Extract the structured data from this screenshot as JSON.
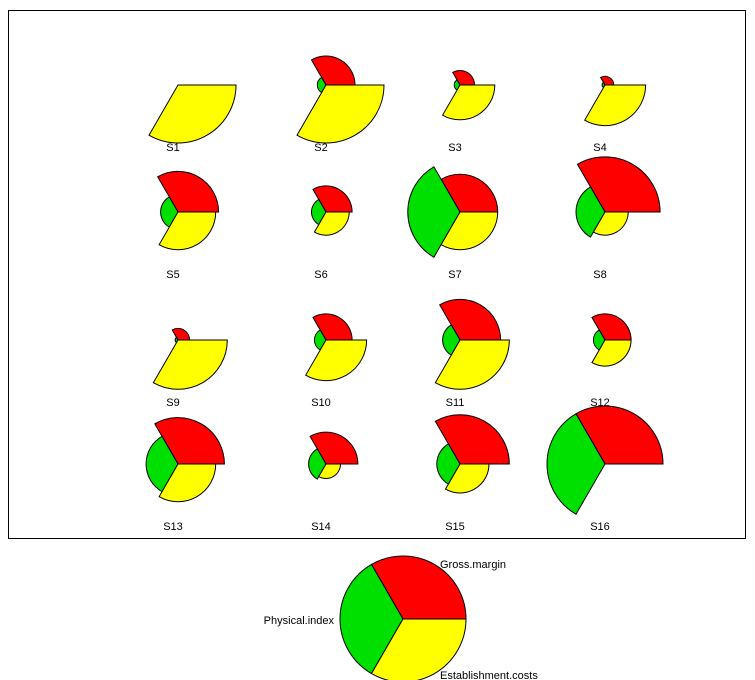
{
  "chart_data": {
    "type": "segment",
    "variables": [
      "Gross.margin",
      "Physical.index",
      "Establishment.costs"
    ],
    "colors": {
      "Gross.margin": "#ff0000",
      "Physical.index": "#00e000",
      "Establishment.costs": "#ffff00"
    },
    "stars": [
      {
        "label": "S1",
        "values": [
          0.0,
          0.0,
          1.0
        ]
      },
      {
        "label": "S2",
        "values": [
          0.5,
          0.15,
          1.0
        ]
      },
      {
        "label": "S3",
        "values": [
          0.25,
          0.1,
          0.6
        ]
      },
      {
        "label": "S4",
        "values": [
          0.15,
          0.05,
          0.7
        ]
      },
      {
        "label": "S5",
        "values": [
          0.7,
          0.3,
          0.65
        ]
      },
      {
        "label": "S6",
        "values": [
          0.45,
          0.25,
          0.4
        ]
      },
      {
        "label": "S7",
        "values": [
          0.65,
          0.9,
          0.65
        ]
      },
      {
        "label": "S8",
        "values": [
          0.95,
          0.5,
          0.4
        ]
      },
      {
        "label": "S9",
        "values": [
          0.2,
          0.05,
          0.85
        ]
      },
      {
        "label": "S10",
        "values": [
          0.45,
          0.2,
          0.7
        ]
      },
      {
        "label": "S11",
        "values": [
          0.7,
          0.3,
          0.85
        ]
      },
      {
        "label": "S12",
        "values": [
          0.45,
          0.2,
          0.45
        ]
      },
      {
        "label": "S13",
        "values": [
          0.8,
          0.55,
          0.65
        ]
      },
      {
        "label": "S14",
        "values": [
          0.55,
          0.3,
          0.25
        ]
      },
      {
        "label": "S15",
        "values": [
          0.85,
          0.4,
          0.5
        ]
      },
      {
        "label": "S16",
        "values": [
          1.0,
          1.0,
          0.0
        ]
      }
    ],
    "key_labels": {
      "top": "Gross.margin",
      "left": "Physical.index",
      "bottom": "Establishment.costs"
    }
  }
}
